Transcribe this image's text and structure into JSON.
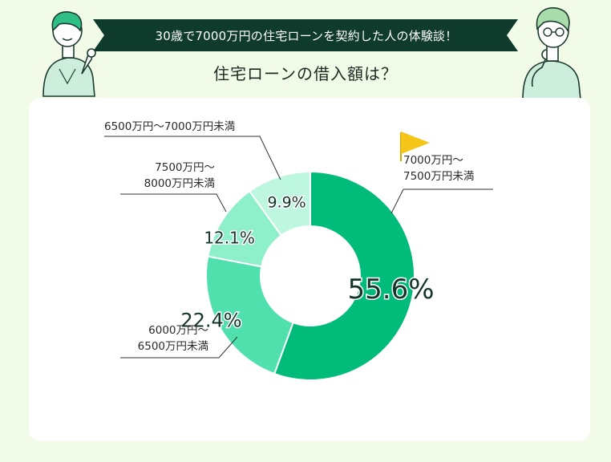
{
  "header": {
    "banner_text": "30歳で7000万円の住宅ローンを契約した人の体験談！",
    "title": "住宅ローンの借入額は？"
  },
  "colors": {
    "background": "#f1fbe8",
    "banner": "#0f3b2c",
    "slice_1": "#00bb7a",
    "slice_2": "#4fe0ae",
    "slice_3": "#8ef0cb",
    "slice_4": "#bef7e0",
    "flag": "#f5c518"
  },
  "chart_data": {
    "type": "pie",
    "donut": true,
    "title": "住宅ローンの借入額は？",
    "slices": [
      {
        "label": "7000万円〜7500万円未満",
        "label_lines": [
          "7000万円〜",
          "7500万円未満"
        ],
        "value": 55.6,
        "display": "55.6%",
        "color": "#00bb7a",
        "highlight": true
      },
      {
        "label": "6000万円〜6500万円未満",
        "label_lines": [
          "6000万円〜",
          "6500万円未満"
        ],
        "value": 22.4,
        "display": "22.4%",
        "color": "#4fe0ae"
      },
      {
        "label": "7500万円〜8000万円未満",
        "label_lines": [
          "7500万円〜",
          "8000万円未満"
        ],
        "value": 12.1,
        "display": "12.1%",
        "color": "#8ef0cb"
      },
      {
        "label": "6500万円〜7000万円未満",
        "label_lines": [
          "6500万円〜7000万円未満"
        ],
        "value": 9.9,
        "display": "9.9%",
        "color": "#bef7e0"
      }
    ],
    "highlight_icon": "flag-icon"
  },
  "illustrations": {
    "left": "pointing-person-illustration",
    "right": "thinking-person-illustration"
  }
}
